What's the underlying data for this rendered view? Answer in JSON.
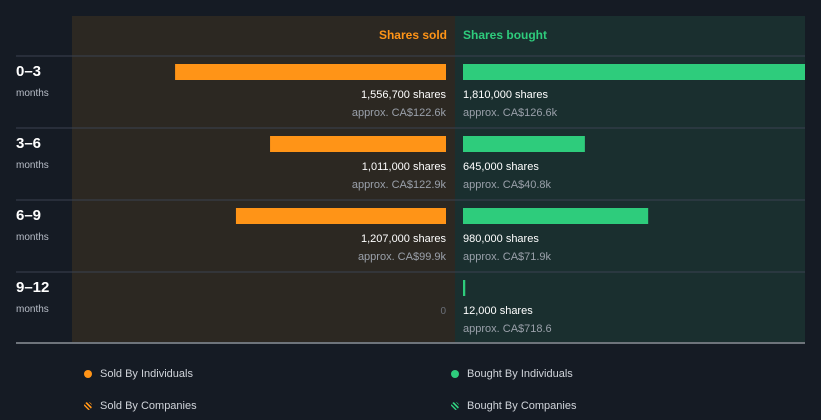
{
  "chart_data": {
    "type": "bar",
    "categories": [
      {
        "label": "0–3",
        "unit": "months"
      },
      {
        "label": "3–6",
        "unit": "months"
      },
      {
        "label": "6–9",
        "unit": "months"
      },
      {
        "label": "9–12",
        "unit": "months"
      }
    ],
    "series": [
      {
        "name": "Shares sold",
        "values": [
          1556700,
          1011000,
          1207000,
          0
        ],
        "value_labels": [
          "1,556,700 shares",
          "1,011,000 shares",
          "1,207,000 shares",
          "0"
        ],
        "approx_labels": [
          "approx. CA$122.6k",
          "approx. CA$122.9k",
          "approx. CA$99.9k",
          ""
        ]
      },
      {
        "name": "Shares bought",
        "values": [
          1810000,
          645000,
          980000,
          12000
        ],
        "value_labels": [
          "1,810,000 shares",
          "645,000 shares",
          "980,000 shares",
          "12,000 shares"
        ],
        "approx_labels": [
          "approx. CA$126.6k",
          "approx. CA$40.8k",
          "approx. CA$71.9k",
          "approx. CA$718.6"
        ]
      }
    ],
    "max_value": 1810000,
    "colors": {
      "sold": "#ff9417",
      "bought": "#2ecc7c",
      "sold_panel": "#2c2822",
      "bought_panel": "#1a2f2f",
      "background": "#151b24"
    }
  },
  "legend": {
    "sold_individuals": "Sold By Individuals",
    "bought_individuals": "Bought By Individuals",
    "sold_companies": "Sold By Companies",
    "bought_companies": "Bought By Companies"
  }
}
